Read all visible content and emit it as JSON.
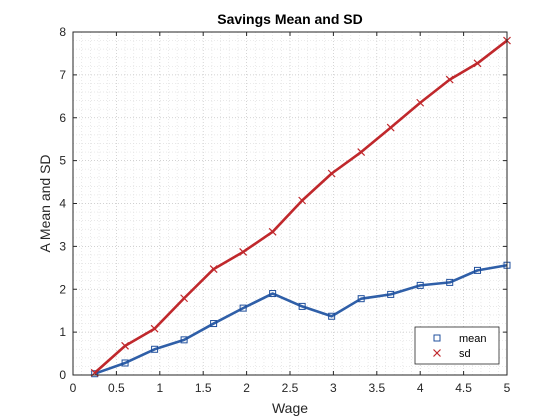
{
  "chart_data": {
    "type": "line",
    "title": "Savings Mean and SD",
    "xlabel": "Wage",
    "ylabel": "A Mean and SD",
    "xlim": [
      0,
      5
    ],
    "ylim": [
      0,
      8
    ],
    "xticks": [
      "0",
      "0.5",
      "1",
      "1.5",
      "2",
      "2.5",
      "3",
      "3.5",
      "4",
      "4.5",
      "5"
    ],
    "yticks": [
      "0",
      "1",
      "2",
      "3",
      "4",
      "5",
      "6",
      "7",
      "8"
    ],
    "grid": "on (major and minor, dotted)",
    "legend_position": "bottom-right",
    "x": [
      0.25,
      0.6,
      0.94,
      1.28,
      1.62,
      1.96,
      2.3,
      2.64,
      2.98,
      3.32,
      3.66,
      4.0,
      4.34,
      4.66,
      5.0
    ],
    "series": [
      {
        "name": "mean",
        "color": "#2f5fa8",
        "marker": "square",
        "values": [
          0.03,
          0.28,
          0.6,
          0.82,
          1.2,
          1.56,
          1.9,
          1.6,
          1.37,
          1.78,
          1.88,
          2.09,
          2.16,
          2.44,
          2.56
        ]
      },
      {
        "name": "sd",
        "color": "#c0282c",
        "marker": "x",
        "values": [
          0.05,
          0.68,
          1.08,
          1.79,
          2.47,
          2.87,
          3.34,
          4.07,
          4.7,
          5.2,
          5.77,
          6.35,
          6.89,
          7.27,
          7.8
        ]
      }
    ]
  }
}
